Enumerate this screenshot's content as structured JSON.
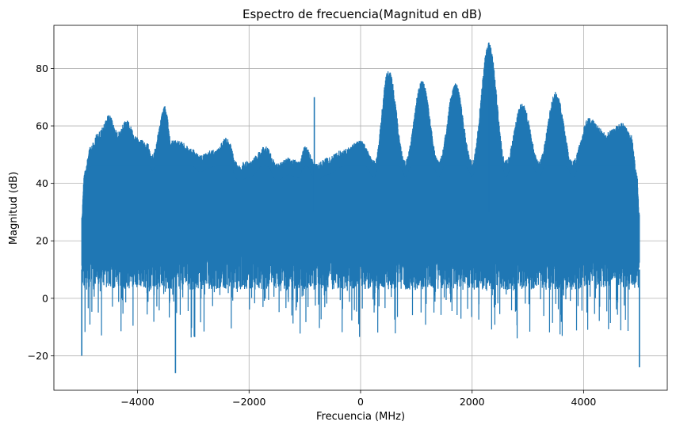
{
  "chart_data": {
    "type": "line",
    "title": "Espectro de frecuencia(Magnitud en dB)",
    "xlabel": "Frecuencia (MHz)",
    "ylabel": "Magnitud (dB)",
    "xlim": [
      -5500,
      5500
    ],
    "ylim": [
      -32,
      95
    ],
    "grid": true,
    "line_color": "#1f77b4",
    "x_ticks": [
      -4000,
      -2000,
      0,
      2000,
      4000
    ],
    "x_tick_labels": [
      "−4000",
      "−2000",
      "0",
      "2000",
      "4000"
    ],
    "y_ticks": [
      -20,
      0,
      20,
      40,
      60,
      80
    ],
    "y_tick_labels": [
      "−20",
      "0",
      "20",
      "40",
      "60",
      "80"
    ],
    "x_range": [
      -5000,
      5000
    ],
    "upper_envelope": [
      {
        "x": -5000,
        "y": 30
      },
      {
        "x": -4950,
        "y": 45
      },
      {
        "x": -4850,
        "y": 53
      },
      {
        "x": -4700,
        "y": 58
      },
      {
        "x": -4500,
        "y": 64
      },
      {
        "x": -4350,
        "y": 58
      },
      {
        "x": -4200,
        "y": 62
      },
      {
        "x": -4000,
        "y": 56
      },
      {
        "x": -3820,
        "y": 54
      },
      {
        "x": -3750,
        "y": 50
      },
      {
        "x": -3500,
        "y": 67
      },
      {
        "x": -3400,
        "y": 55
      },
      {
        "x": -3250,
        "y": 55
      },
      {
        "x": -3000,
        "y": 52
      },
      {
        "x": -2900,
        "y": 50
      },
      {
        "x": -2600,
        "y": 52
      },
      {
        "x": -2400,
        "y": 56
      },
      {
        "x": -2200,
        "y": 47
      },
      {
        "x": -2000,
        "y": 48
      },
      {
        "x": -1700,
        "y": 53
      },
      {
        "x": -1500,
        "y": 47
      },
      {
        "x": -1300,
        "y": 49
      },
      {
        "x": -1100,
        "y": 48
      },
      {
        "x": -1000,
        "y": 53
      },
      {
        "x": -800,
        "y": 47
      },
      {
        "x": -600,
        "y": 49
      },
      {
        "x": -300,
        "y": 52
      },
      {
        "x": 0,
        "y": 55
      },
      {
        "x": 250,
        "y": 48
      },
      {
        "x": 500,
        "y": 80
      },
      {
        "x": 800,
        "y": 48
      },
      {
        "x": 1100,
        "y": 76
      },
      {
        "x": 1400,
        "y": 48
      },
      {
        "x": 1700,
        "y": 75
      },
      {
        "x": 2000,
        "y": 48
      },
      {
        "x": 2300,
        "y": 89
      },
      {
        "x": 2600,
        "y": 48
      },
      {
        "x": 2900,
        "y": 68
      },
      {
        "x": 3200,
        "y": 48
      },
      {
        "x": 3500,
        "y": 72
      },
      {
        "x": 3800,
        "y": 48
      },
      {
        "x": 4100,
        "y": 63
      },
      {
        "x": 4400,
        "y": 58
      },
      {
        "x": 4700,
        "y": 61
      },
      {
        "x": 4850,
        "y": 57
      },
      {
        "x": 4950,
        "y": 45
      },
      {
        "x": 5000,
        "y": 30
      }
    ],
    "lower_baseline": 15,
    "spikes": [
      {
        "x": -5000,
        "y": -20
      },
      {
        "x": -3320,
        "y": -26
      },
      {
        "x": -830,
        "y": 70
      },
      {
        "x": 2300,
        "y": 89
      },
      {
        "x": 5000,
        "y": -24
      }
    ]
  }
}
